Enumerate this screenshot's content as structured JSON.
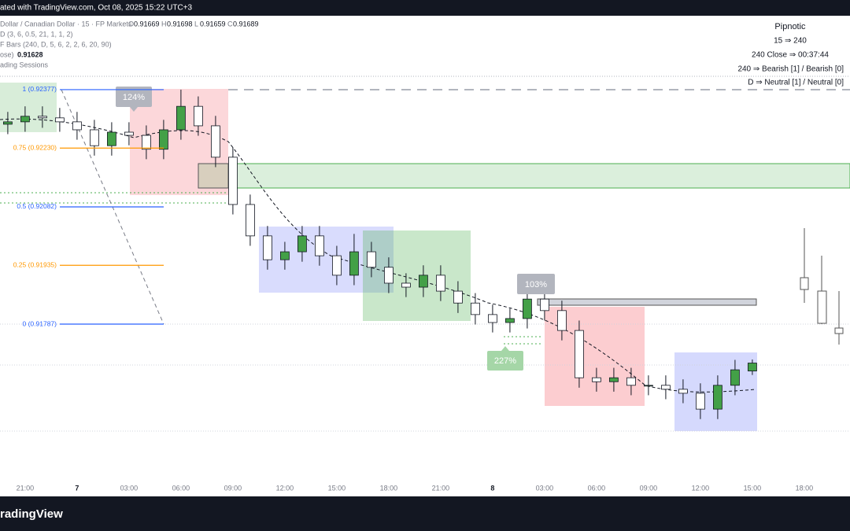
{
  "header": {
    "watermark": "ated with TradingView.com, Oct 08, 2025 15:22 UTC+3",
    "symbol": "Dollar / Canadian Dollar · 15 · FP Markets",
    "ohlc": [
      {
        "key": "O",
        "value": "0.91669"
      },
      {
        "key": "H",
        "value": "0.91698"
      },
      {
        "key": "L",
        "value": "0.91659"
      },
      {
        "key": "C",
        "value": "0.91689"
      }
    ],
    "indicators": [
      "D (3, 6, 0.5, 21, 1, 1, 2)",
      "F Bars (240, D, 5, 6, 2, 2, 6, 20, 90)"
    ],
    "close_label": "ose)",
    "close_value": "0.91628",
    "sessions": "ading Sessions"
  },
  "panel": {
    "title": "Pipnotic",
    "lines": [
      "15 ⇒ 240",
      "240 Close ⇒ 00:37:44",
      "240 ⇒ Bearish [1] / Bearish [0]",
      "D ⇒ Neutral [1] / Neutral [0]"
    ]
  },
  "badges": [
    "124%",
    "103%",
    "227%"
  ],
  "footer": {
    "logo": "radingView"
  },
  "chart_data": {
    "type": "candlestick",
    "x": [
      -1,
      0,
      1,
      2,
      3,
      4,
      5,
      6,
      7,
      8,
      9,
      10,
      11,
      12,
      13,
      14,
      15,
      16,
      17,
      18,
      19,
      20,
      21,
      22,
      23,
      24,
      25,
      26,
      27,
      28,
      29,
      30,
      31,
      32,
      33,
      34,
      35,
      36,
      37,
      38,
      39,
      40,
      41,
      42
    ],
    "open": [
      0.9229,
      0.92296,
      0.9231,
      0.92306,
      0.92296,
      0.92276,
      0.92236,
      0.9227,
      0.92262,
      0.92227,
      0.92276,
      0.92335,
      0.92286,
      0.92207,
      0.92088,
      0.92009,
      0.91949,
      0.91969,
      0.92009,
      0.91959,
      0.9191,
      0.91969,
      0.9193,
      0.9189,
      0.9188,
      0.9191,
      0.9187,
      0.9184,
      0.91811,
      0.91791,
      0.91801,
      0.9185,
      0.91821,
      0.91771,
      0.91652,
      0.91642,
      0.91652,
      0.91633,
      0.91633,
      0.91623,
      0.91613,
      0.91573,
      0.91633,
      0.91669
    ],
    "high": [
      0.92321,
      0.92335,
      0.92335,
      0.92331,
      0.92321,
      0.92301,
      0.92295,
      0.92295,
      0.92287,
      0.92301,
      0.92377,
      0.9236,
      0.92311,
      0.92232,
      0.92113,
      0.92034,
      0.91994,
      0.92034,
      0.92034,
      0.91984,
      0.92014,
      0.91994,
      0.91955,
      0.91915,
      0.91935,
      0.91935,
      0.91895,
      0.91865,
      0.91836,
      0.91826,
      0.91875,
      0.91875,
      0.91846,
      0.91796,
      0.91677,
      0.91677,
      0.91677,
      0.91658,
      0.91658,
      0.91648,
      0.91638,
      0.91658,
      0.91697,
      0.91698
    ],
    "low": [
      0.92265,
      0.92271,
      0.92281,
      0.92271,
      0.92251,
      0.92211,
      0.92211,
      0.92237,
      0.92202,
      0.92202,
      0.92251,
      0.92261,
      0.92182,
      0.92063,
      0.91984,
      0.91924,
      0.91924,
      0.91944,
      0.91934,
      0.91885,
      0.91885,
      0.91905,
      0.91865,
      0.91855,
      0.91855,
      0.91845,
      0.91815,
      0.91786,
      0.91766,
      0.91766,
      0.91776,
      0.91796,
      0.91746,
      0.91627,
      0.91617,
      0.91617,
      0.91608,
      0.91608,
      0.91598,
      0.91588,
      0.91548,
      0.91548,
      0.91608,
      0.91659
    ],
    "close": [
      0.92296,
      0.9231,
      0.92306,
      0.92296,
      0.92276,
      0.92236,
      0.9227,
      0.92262,
      0.92227,
      0.92276,
      0.92335,
      0.92286,
      0.92207,
      0.92088,
      0.92009,
      0.91949,
      0.91969,
      0.92009,
      0.91959,
      0.9191,
      0.91969,
      0.9193,
      0.9189,
      0.9188,
      0.9191,
      0.9187,
      0.9184,
      0.91811,
      0.91791,
      0.91801,
      0.9185,
      0.91821,
      0.91771,
      0.91652,
      0.91642,
      0.91652,
      0.91633,
      0.91633,
      0.91623,
      0.91613,
      0.91573,
      0.91633,
      0.91672,
      0.91689
    ],
    "up_color": "#43a047",
    "down_color": "#ffffff",
    "xlim": [
      -1.45,
      47.64
    ],
    "ylim": [
      0.91399,
      0.92563
    ],
    "xticks": [
      {
        "value": 0,
        "label": "21:00"
      },
      {
        "value": 3,
        "label": "7"
      },
      {
        "value": 6,
        "label": "03:00"
      },
      {
        "value": 9,
        "label": "06:00"
      },
      {
        "value": 12,
        "label": "09:00"
      },
      {
        "value": 15,
        "label": "12:00"
      },
      {
        "value": 18,
        "label": "15:00"
      },
      {
        "value": 21,
        "label": "18:00"
      },
      {
        "value": 24,
        "label": "21:00"
      },
      {
        "value": 27,
        "label": "8"
      },
      {
        "value": 30,
        "label": "03:00"
      },
      {
        "value": 33,
        "label": "06:00"
      },
      {
        "value": 36,
        "label": "09:00"
      },
      {
        "value": 39,
        "label": "12:00"
      },
      {
        "value": 42,
        "label": "15:00"
      },
      {
        "value": 45,
        "label": "18:00"
      }
    ],
    "fib_levels": [
      {
        "text": "1 (0.92377)",
        "price": 0.92377,
        "color": "#2962ff"
      },
      {
        "text": "0.75 (0.92230)",
        "price": 0.9223,
        "color": "#ff9800"
      },
      {
        "text": "0.5 (0.92082)",
        "price": 0.92082,
        "color": "#2962ff"
      },
      {
        "text": "0.25 (0.91935)",
        "price": 0.91935,
        "color": "#ff9800"
      },
      {
        "text": "0 (0.91787)",
        "price": 0.91787,
        "color": "#2962ff"
      }
    ]
  }
}
